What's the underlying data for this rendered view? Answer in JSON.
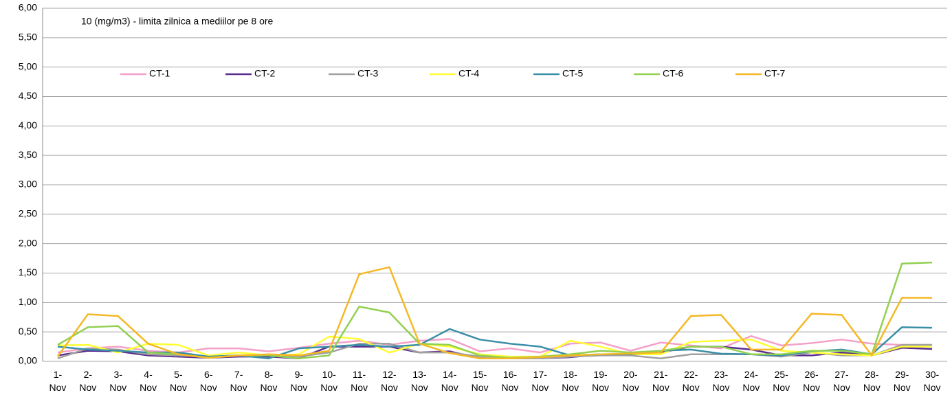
{
  "chart_data": {
    "type": "line",
    "annotation": "10 (mg/m3) - limita zilnica a mediilor pe 8 ore",
    "categories": [
      "1-Nov",
      "2-Nov",
      "3-Nov",
      "4-Nov",
      "5-Nov",
      "6-Nov",
      "7-Nov",
      "8-Nov",
      "9-Nov",
      "10-Nov",
      "11-Nov",
      "12-Nov",
      "13-Nov",
      "14-Nov",
      "15-Nov",
      "16-Nov",
      "17-Nov",
      "18-Nov",
      "19-Nov",
      "20-Nov",
      "21-Nov",
      "22-Nov",
      "23-Nov",
      "24-Nov",
      "25-Nov",
      "26-Nov",
      "27-Nov",
      "28-Nov",
      "29-Nov",
      "30-Nov"
    ],
    "series": [
      {
        "name": "CT-1",
        "color": "#f4a0c8",
        "values": [
          0.15,
          0.22,
          0.25,
          0.18,
          0.15,
          0.22,
          0.22,
          0.17,
          0.23,
          0.3,
          0.35,
          0.28,
          0.35,
          0.38,
          0.17,
          0.22,
          0.15,
          0.3,
          0.32,
          0.18,
          0.32,
          0.27,
          0.22,
          0.43,
          0.27,
          0.31,
          0.37,
          0.3,
          0.28,
          0.28
        ]
      },
      {
        "name": "CT-2",
        "color": "#5b2c8f",
        "values": [
          0.1,
          0.18,
          0.17,
          0.1,
          0.08,
          0.06,
          0.08,
          0.08,
          0.05,
          0.25,
          0.25,
          0.25,
          0.15,
          0.17,
          0.05,
          0.05,
          0.05,
          0.07,
          0.12,
          0.12,
          0.15,
          0.25,
          0.25,
          0.2,
          0.1,
          0.1,
          0.15,
          0.1,
          0.23,
          0.21
        ]
      },
      {
        "name": "CT-3",
        "color": "#a0a0a0",
        "values": [
          0.05,
          0.22,
          0.2,
          0.12,
          0.1,
          0.08,
          0.1,
          0.1,
          0.08,
          0.15,
          0.3,
          0.3,
          0.15,
          0.15,
          0.08,
          0.05,
          0.05,
          0.08,
          0.1,
          0.1,
          0.05,
          0.12,
          0.12,
          0.12,
          0.08,
          0.15,
          0.1,
          0.1,
          0.28,
          0.28
        ]
      },
      {
        "name": "CT-4",
        "color": "#ffff33",
        "values": [
          0.27,
          0.28,
          0.15,
          0.3,
          0.28,
          0.1,
          0.15,
          0.1,
          0.12,
          0.42,
          0.38,
          0.15,
          0.3,
          0.25,
          0.12,
          0.08,
          0.08,
          0.35,
          0.25,
          0.12,
          0.12,
          0.33,
          0.35,
          0.37,
          0.18,
          0.15,
          0.12,
          0.1,
          0.25,
          0.25
        ]
      },
      {
        "name": "CT-5",
        "color": "#3a8fa8",
        "values": [
          0.25,
          0.2,
          0.18,
          0.15,
          0.15,
          0.08,
          0.1,
          0.05,
          0.22,
          0.25,
          0.28,
          0.25,
          0.28,
          0.55,
          0.37,
          0.3,
          0.25,
          0.1,
          0.12,
          0.12,
          0.18,
          0.2,
          0.13,
          0.12,
          0.1,
          0.17,
          0.2,
          0.12,
          0.58,
          0.57
        ]
      },
      {
        "name": "CT-6",
        "color": "#92d050",
        "values": [
          0.28,
          0.58,
          0.6,
          0.15,
          0.12,
          0.06,
          0.1,
          0.1,
          0.05,
          0.1,
          0.93,
          0.83,
          0.3,
          0.28,
          0.1,
          0.06,
          0.08,
          0.12,
          0.18,
          0.15,
          0.18,
          0.25,
          0.25,
          0.12,
          0.12,
          0.18,
          0.18,
          0.12,
          1.66,
          1.68
        ]
      },
      {
        "name": "CT-7",
        "color": "#f5b824",
        "values": [
          0.08,
          0.8,
          0.77,
          0.3,
          0.12,
          0.06,
          0.1,
          0.12,
          0.1,
          0.18,
          1.48,
          1.6,
          0.3,
          0.14,
          0.05,
          0.05,
          0.07,
          0.1,
          0.12,
          0.13,
          0.15,
          0.77,
          0.79,
          0.2,
          0.2,
          0.81,
          0.79,
          0.1,
          1.08,
          1.08
        ]
      }
    ],
    "ylim": [
      0,
      6
    ],
    "yticks": [
      {
        "value": 0,
        "label": "0,00"
      },
      {
        "value": 0.5,
        "label": "0,50"
      },
      {
        "value": 1,
        "label": "1,00"
      },
      {
        "value": 1.5,
        "label": "1,50"
      },
      {
        "value": 2,
        "label": "2,00"
      },
      {
        "value": 2.5,
        "label": "2,50"
      },
      {
        "value": 3,
        "label": "3,00"
      },
      {
        "value": 3.5,
        "label": "3,50"
      },
      {
        "value": 4,
        "label": "4,00"
      },
      {
        "value": 4.5,
        "label": "4,50"
      },
      {
        "value": 5,
        "label": "5,00"
      },
      {
        "value": 5.5,
        "label": "5,50"
      },
      {
        "value": 6,
        "label": "6,00"
      }
    ],
    "grid": true
  }
}
